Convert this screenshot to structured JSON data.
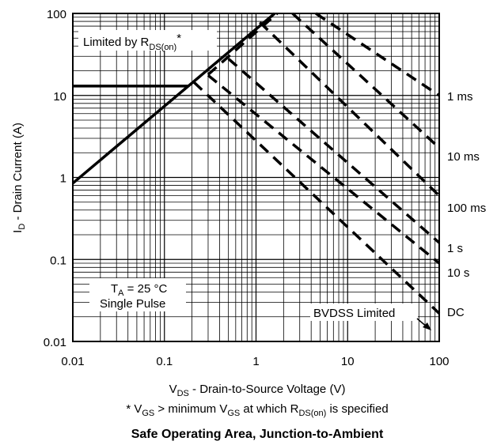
{
  "chart_data": {
    "type": "line",
    "title": "Safe Operating Area, Junction-to-Ambient",
    "footnote": {
      "star": "* V",
      "gs": "GS",
      "text1": " > minimum V",
      "gs2": "GS",
      "text2": " at which R",
      "sub": "DS(on)",
      "text3": " is specified"
    },
    "xaxis": {
      "label_main": "V",
      "label_sub": "DS",
      "label_rest": " - Drain-to-Source Voltage (V)",
      "scale": "log",
      "range": [
        0.01,
        100
      ],
      "ticks": [
        "0.01",
        "0.1",
        "1",
        "10",
        "100"
      ]
    },
    "yaxis": {
      "label_main": "I",
      "label_sub": "D",
      "label_rest": " - Drain Current (A)",
      "scale": "log",
      "range": [
        0.01,
        100
      ],
      "ticks": [
        "0.01",
        "0.1",
        "1",
        "10",
        "100"
      ]
    },
    "grid": true,
    "series": [
      {
        "name": "Limited by RDS(on)",
        "style": "solid",
        "points": [
          [
            0.01,
            0.85
          ],
          [
            1.6,
            100
          ]
        ]
      },
      {
        "name": "current limit",
        "style": "solid",
        "points": [
          [
            0.01,
            13
          ],
          [
            0.18,
            13
          ]
        ]
      },
      {
        "name": "1 ms",
        "style": "dashed",
        "points": [
          [
            0.3,
            18
          ],
          [
            1.7,
            100
          ]
        ]
      },
      {
        "name": "1 ms",
        "style": "dashed",
        "points": [
          [
            4.5,
            100
          ],
          [
            100,
            10
          ]
        ]
      },
      {
        "name": "10 ms",
        "style": "dashed",
        "points": [
          [
            2.5,
            100
          ],
          [
            100,
            2.3
          ]
        ]
      },
      {
        "name": "100 ms",
        "style": "dashed",
        "points": [
          [
            1.1,
            78
          ],
          [
            100,
            0.6
          ]
        ]
      },
      {
        "name": "1 s",
        "style": "dashed",
        "points": [
          [
            0.5,
            28
          ],
          [
            100,
            0.16
          ]
        ]
      },
      {
        "name": "10 s",
        "style": "dashed",
        "points": [
          [
            0.3,
            17.6
          ],
          [
            100,
            0.09
          ]
        ]
      },
      {
        "name": "DC",
        "style": "dashed",
        "points": [
          [
            0.21,
            14.5
          ],
          [
            100,
            0.022
          ]
        ]
      }
    ],
    "labels": {
      "rds_main": "Limited by R",
      "rds_sub": "DS(on)",
      "rds_star": "*",
      "ta_main": "T",
      "ta_sub": "A",
      "ta_rest": " = 25 °C",
      "pulse": "Single Pulse",
      "bvdss": "BVDSS Limited",
      "curves": [
        "1 ms",
        "10 ms",
        "100 ms",
        "1 s",
        "10 s",
        "DC"
      ]
    }
  }
}
